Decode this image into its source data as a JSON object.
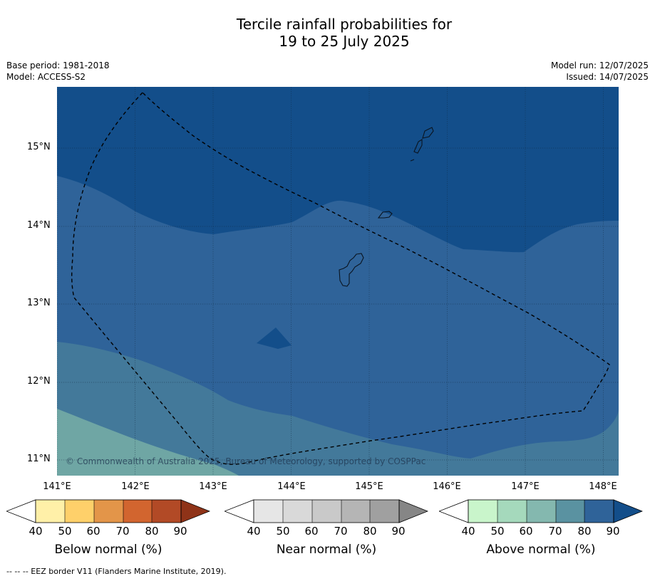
{
  "title": {
    "line1": "Tercile rainfall probabilities for",
    "line2": "19 to 25 July 2025"
  },
  "meta": {
    "base_period": "Base period: 1981-2018",
    "model": "Model: ACCESS-S2",
    "model_run": "Model run: 12/07/2025",
    "issued": "Issued: 14/07/2025"
  },
  "map": {
    "lat_labels": [
      "15°N",
      "14°N",
      "13°N",
      "12°N",
      "11°N"
    ],
    "lon_labels": [
      "141°E",
      "142°E",
      "143°E",
      "144°E",
      "145°E",
      "146°E",
      "147°E",
      "148°E"
    ],
    "copyright": "© Commonwealth of Australia 2025, Bureau of Meteorology, supported by COSPPac",
    "colors": {
      "above_90": "#134e8a",
      "above_80": "#2f6399",
      "above_70": "#43799a",
      "above_60": "#6fa6a4"
    }
  },
  "colorbars": {
    "below": {
      "label": "Below normal (%)",
      "ticks": [
        "40",
        "50",
        "60",
        "70",
        "80",
        "90"
      ],
      "colors": [
        "#fff0a8",
        "#fed06a",
        "#e39549",
        "#d2652f",
        "#b24a26",
        "#8f3318"
      ]
    },
    "near": {
      "label": "Near normal (%)",
      "ticks": [
        "40",
        "50",
        "60",
        "70",
        "80",
        "90"
      ],
      "colors": [
        "#e6e6e6",
        "#d9d9d9",
        "#c9c9c9",
        "#b5b5b5",
        "#a0a0a0",
        "#868686"
      ]
    },
    "above": {
      "label": "Above normal (%)",
      "ticks": [
        "40",
        "50",
        "60",
        "70",
        "80",
        "90"
      ],
      "colors": [
        "#c9f5cb",
        "#a5d9bc",
        "#84b8af",
        "#5a92a1",
        "#2f6399",
        "#134e8a"
      ]
    }
  },
  "footer": "--  --  -- EEZ border V11 (Flanders Marine Institute, 2019)."
}
